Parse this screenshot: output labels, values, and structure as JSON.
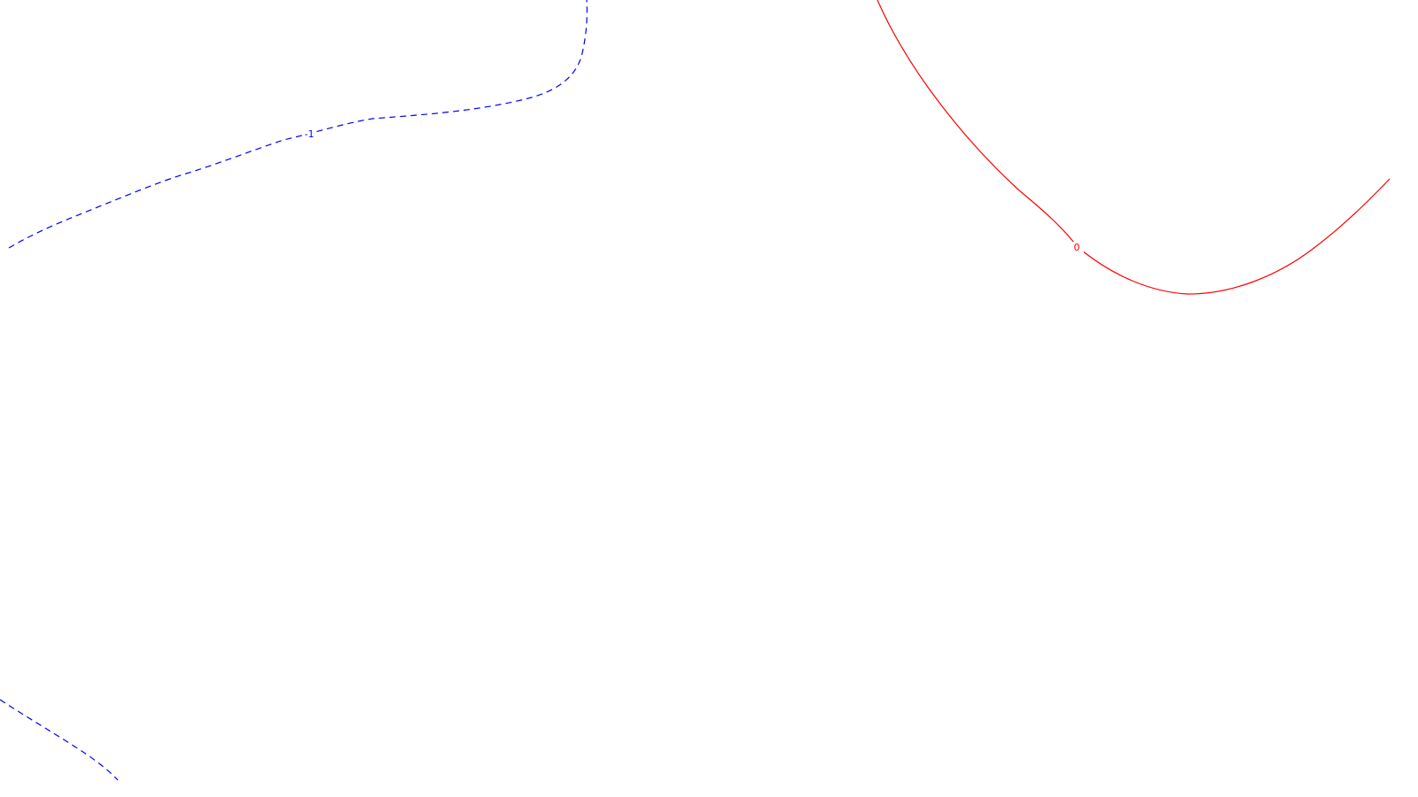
{
  "chart_data": {
    "type": "contour",
    "title": "",
    "xlabel": "",
    "ylabel": "",
    "grid": false,
    "legend": "none",
    "contours": [
      {
        "id": "level-neg1",
        "level_label": "-1",
        "color": "#0000ff",
        "style": "dashed"
      },
      {
        "id": "level-0",
        "level_label": "0",
        "color": "#ff0000",
        "style": "solid"
      }
    ]
  }
}
